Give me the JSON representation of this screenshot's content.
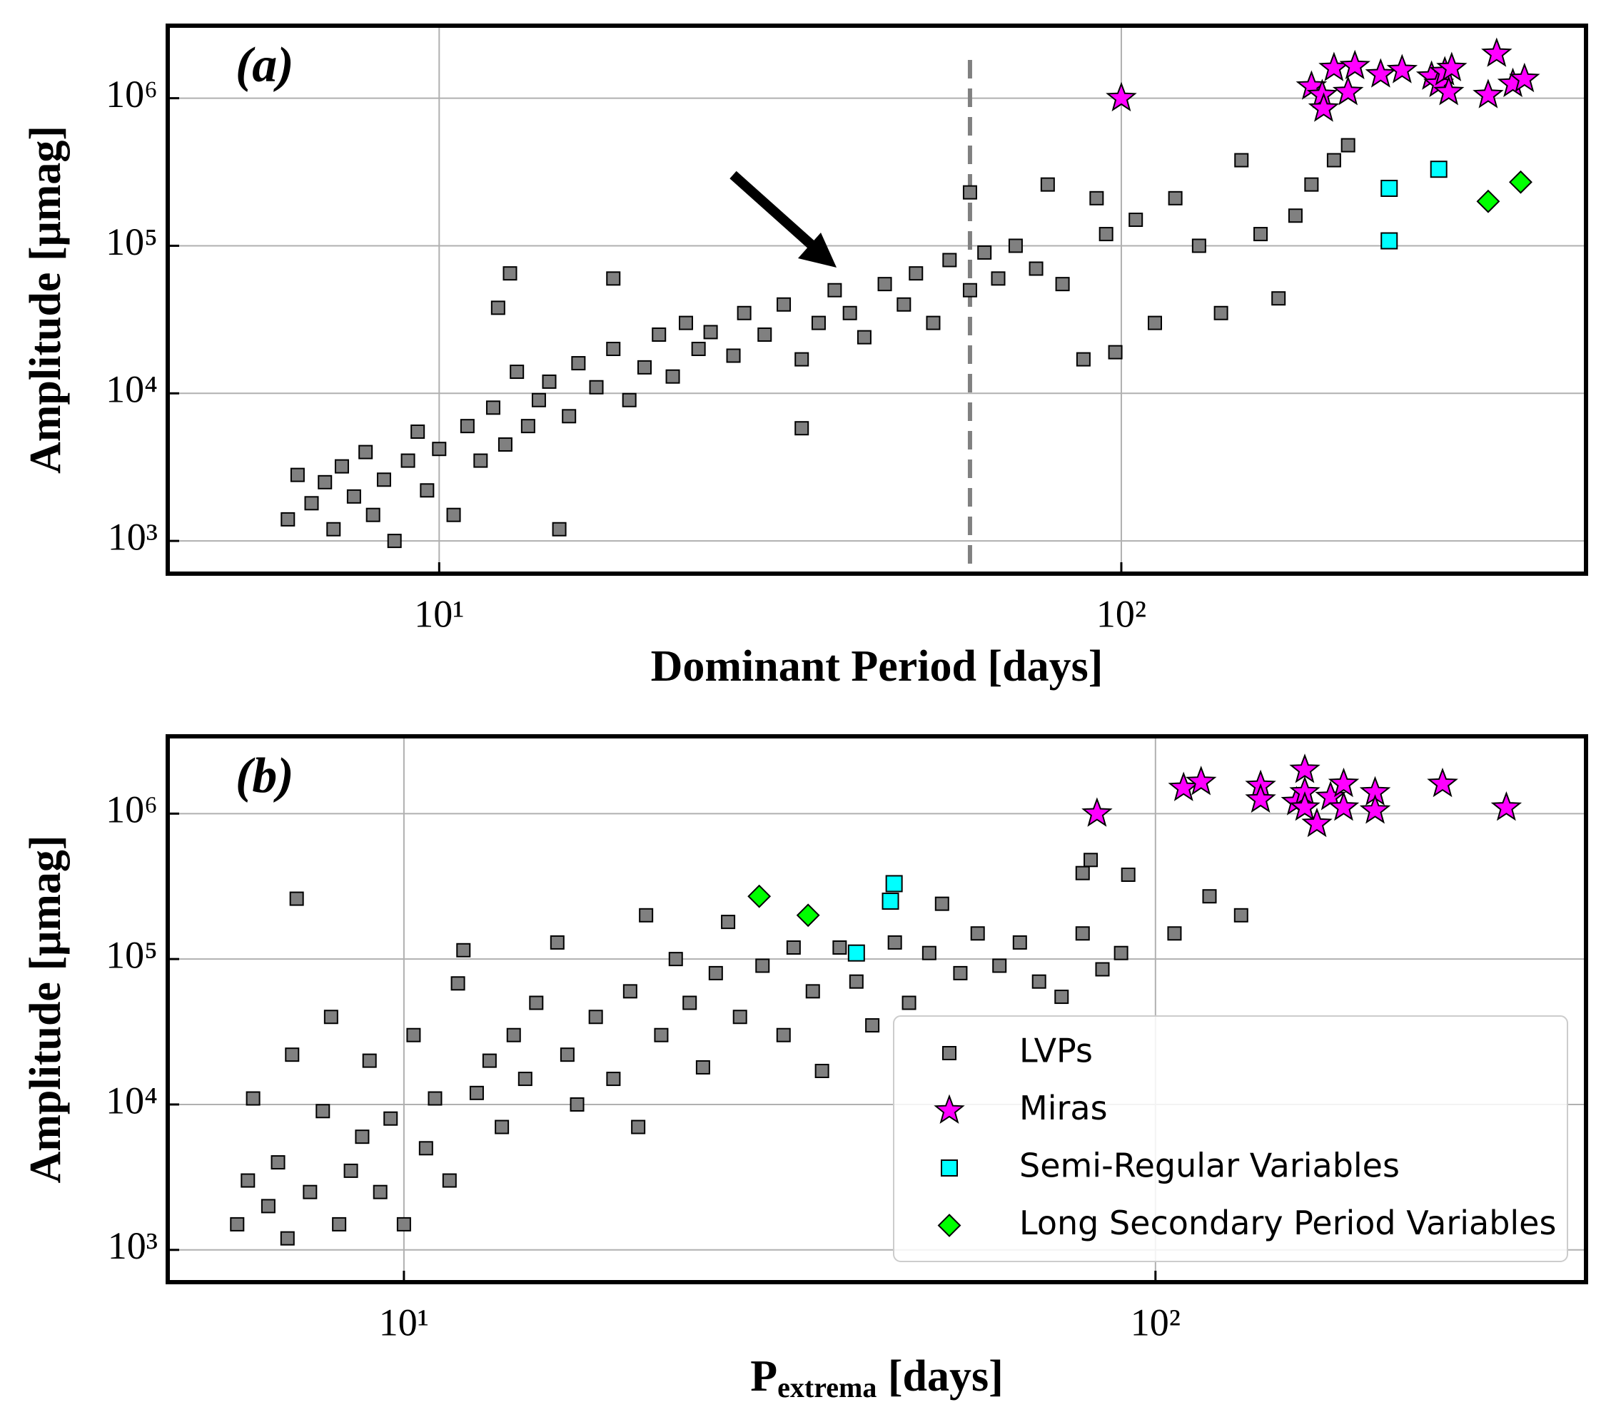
{
  "chart_data": [
    {
      "type": "scatter",
      "panel_label": "(a)",
      "xlabel": [
        "Dominant Period [days]"
      ],
      "ylabel": "Amplitude [μmag]",
      "log_x": true,
      "log_y": true,
      "grid": true,
      "xlim": [
        4,
        480
      ],
      "ylim": [
        600,
        3100000
      ],
      "xticks": [
        {
          "value": 10,
          "label": "10¹"
        },
        {
          "value": 100,
          "label": "10²"
        }
      ],
      "yticks": [
        {
          "value": 1000,
          "label": "10³"
        },
        {
          "value": 10000,
          "label": "10⁴"
        },
        {
          "value": 100000,
          "label": "10⁵"
        },
        {
          "value": 1000000,
          "label": "10⁶"
        }
      ],
      "vline": {
        "x": 60,
        "color": "#808080"
      },
      "series": [
        {
          "color": "#808080",
          "marker": "square",
          "x": [
            6,
            6.2,
            6.5,
            6.8,
            7,
            7.2,
            7.5,
            7.8,
            8,
            8.3,
            8.6,
            9,
            9.3,
            9.6,
            10,
            10.5,
            11,
            11.5,
            12,
            12.5,
            13,
            13.5,
            14,
            14.5,
            15,
            15.5,
            16,
            17,
            18,
            19,
            20,
            21,
            22,
            23,
            24,
            25,
            27,
            28,
            30,
            32,
            34,
            36,
            38,
            40,
            42,
            45,
            48,
            50,
            53,
            56,
            60,
            60,
            63,
            66,
            70,
            75,
            78,
            82,
            88,
            92,
            95,
            98,
            105,
            112,
            120,
            130,
            140,
            150,
            160,
            170,
            180,
            190,
            205,
            215,
            12.7,
            12.2,
            18,
            34
          ],
          "values": [
            1400,
            2800,
            1800,
            2500,
            1200,
            3200,
            2000,
            4000,
            1500,
            2600,
            1000,
            3500,
            5500,
            2200,
            4200,
            1500,
            6000,
            3500,
            8000,
            4500,
            14000,
            6000,
            9000,
            12000,
            1200,
            7000,
            16000,
            11000,
            20000,
            9000,
            15000,
            25000,
            13000,
            30000,
            20000,
            26000,
            18000,
            35000,
            25000,
            40000,
            17000,
            30000,
            50000,
            35000,
            24000,
            55000,
            40000,
            65000,
            30000,
            80000,
            50000,
            230000,
            90000,
            60000,
            100000,
            70000,
            260000,
            55000,
            17000,
            210000,
            120000,
            19000,
            150000,
            30000,
            210000,
            100000,
            35000,
            380000,
            120000,
            44000,
            160000,
            260000,
            380000,
            480000,
            65000,
            38000,
            60000,
            5800
          ]
        },
        {
          "color": "#ff00ff",
          "marker": "star",
          "x": [
            100,
            190,
            197,
            198,
            205,
            215,
            220,
            240,
            258,
            285,
            292,
            298,
            302,
            305,
            345,
            355,
            375,
            390
          ],
          "values": [
            1000000,
            1200000,
            1050000,
            850000,
            1600000,
            1100000,
            1650000,
            1450000,
            1550000,
            1400000,
            1250000,
            1500000,
            1100000,
            1600000,
            1050000,
            2000000,
            1250000,
            1350000
          ]
        },
        {
          "color": "#00ffff",
          "marker": "square",
          "x": [
            247,
            247,
            292
          ],
          "values": [
            245000,
            108000,
            330000
          ]
        },
        {
          "color": "#00ff00",
          "marker": "diamond",
          "x": [
            345,
            385
          ],
          "values": [
            200000,
            270000
          ]
        }
      ]
    },
    {
      "type": "scatter",
      "panel_label": "(b)",
      "xlabel": [
        "P",
        "extrema",
        " [days]"
      ],
      "ylabel": "Amplitude [μmag]",
      "log_x": true,
      "log_y": true,
      "grid": true,
      "legend": "lower right",
      "xlim": [
        4.85,
        374
      ],
      "ylim": [
        600,
        3400000
      ],
      "xticks": [
        {
          "value": 10,
          "label": "10¹"
        },
        {
          "value": 100,
          "label": "10²"
        }
      ],
      "yticks": [
        {
          "value": 1000,
          "label": "10³"
        },
        {
          "value": 10000,
          "label": "10⁴"
        },
        {
          "value": 100000,
          "label": "10⁵"
        },
        {
          "value": 1000000,
          "label": "10⁶"
        }
      ],
      "series": [
        {
          "name": "LVPs",
          "color": "#808080",
          "marker": "square",
          "x": [
            6,
            6.2,
            6.3,
            6.6,
            6.8,
            7,
            7.1,
            7.2,
            7.5,
            7.8,
            8,
            8.2,
            8.5,
            8.8,
            9,
            9.3,
            9.6,
            10,
            10.3,
            10.7,
            11,
            11.5,
            11.8,
            12,
            12.5,
            13,
            13.5,
            14,
            14.5,
            15,
            16,
            16.5,
            17,
            18,
            19,
            20,
            20.5,
            21,
            22,
            23,
            24,
            25,
            26,
            27,
            28,
            30,
            32,
            33,
            35,
            36,
            38,
            40,
            42,
            45,
            47,
            50,
            52,
            55,
            58,
            62,
            66,
            70,
            75,
            80,
            85,
            90,
            92,
            80,
            82,
            106,
            118,
            130
          ],
          "values": [
            1500,
            3000,
            11000,
            2000,
            4000,
            1200,
            22000,
            260000,
            2500,
            9000,
            40000,
            1500,
            3500,
            6000,
            20000,
            2500,
            8000,
            1500,
            30000,
            5000,
            11000,
            3000,
            68000,
            115000,
            12000,
            20000,
            7000,
            30000,
            15000,
            50000,
            130000,
            22000,
            10000,
            40000,
            15000,
            60000,
            7000,
            200000,
            30000,
            100000,
            50000,
            18000,
            80000,
            180000,
            40000,
            90000,
            30000,
            120000,
            60000,
            17000,
            120000,
            70000,
            35000,
            130000,
            50000,
            110000,
            240000,
            80000,
            150000,
            90000,
            130000,
            70000,
            55000,
            150000,
            85000,
            110000,
            380000,
            390000,
            480000,
            150000,
            270000,
            200000
          ]
        },
        {
          "name": "Miras",
          "color": "#ff00ff",
          "marker": "star",
          "x": [
            83.6,
            109,
            115,
            138,
            138,
            154,
            158,
            158,
            158,
            164,
            171,
            178,
            178,
            196,
            196,
            241,
            293
          ],
          "values": [
            1000000,
            1500000,
            1650000,
            1550000,
            1250000,
            1200000,
            1400000,
            2000000,
            1100000,
            850000,
            1300000,
            1600000,
            1100000,
            1400000,
            1050000,
            1600000,
            1100000
          ]
        },
        {
          "name": "Semi-Regular Variables",
          "color": "#00ffff",
          "marker": "square",
          "x": [
            40,
            44.4,
            44.9
          ],
          "values": [
            110000,
            250000,
            330000
          ]
        },
        {
          "name": "Long Secondary Period Variables",
          "color": "#00ff00",
          "marker": "diamond",
          "x": [
            29.7,
            34.5
          ],
          "values": [
            270000,
            200000
          ]
        }
      ]
    }
  ]
}
